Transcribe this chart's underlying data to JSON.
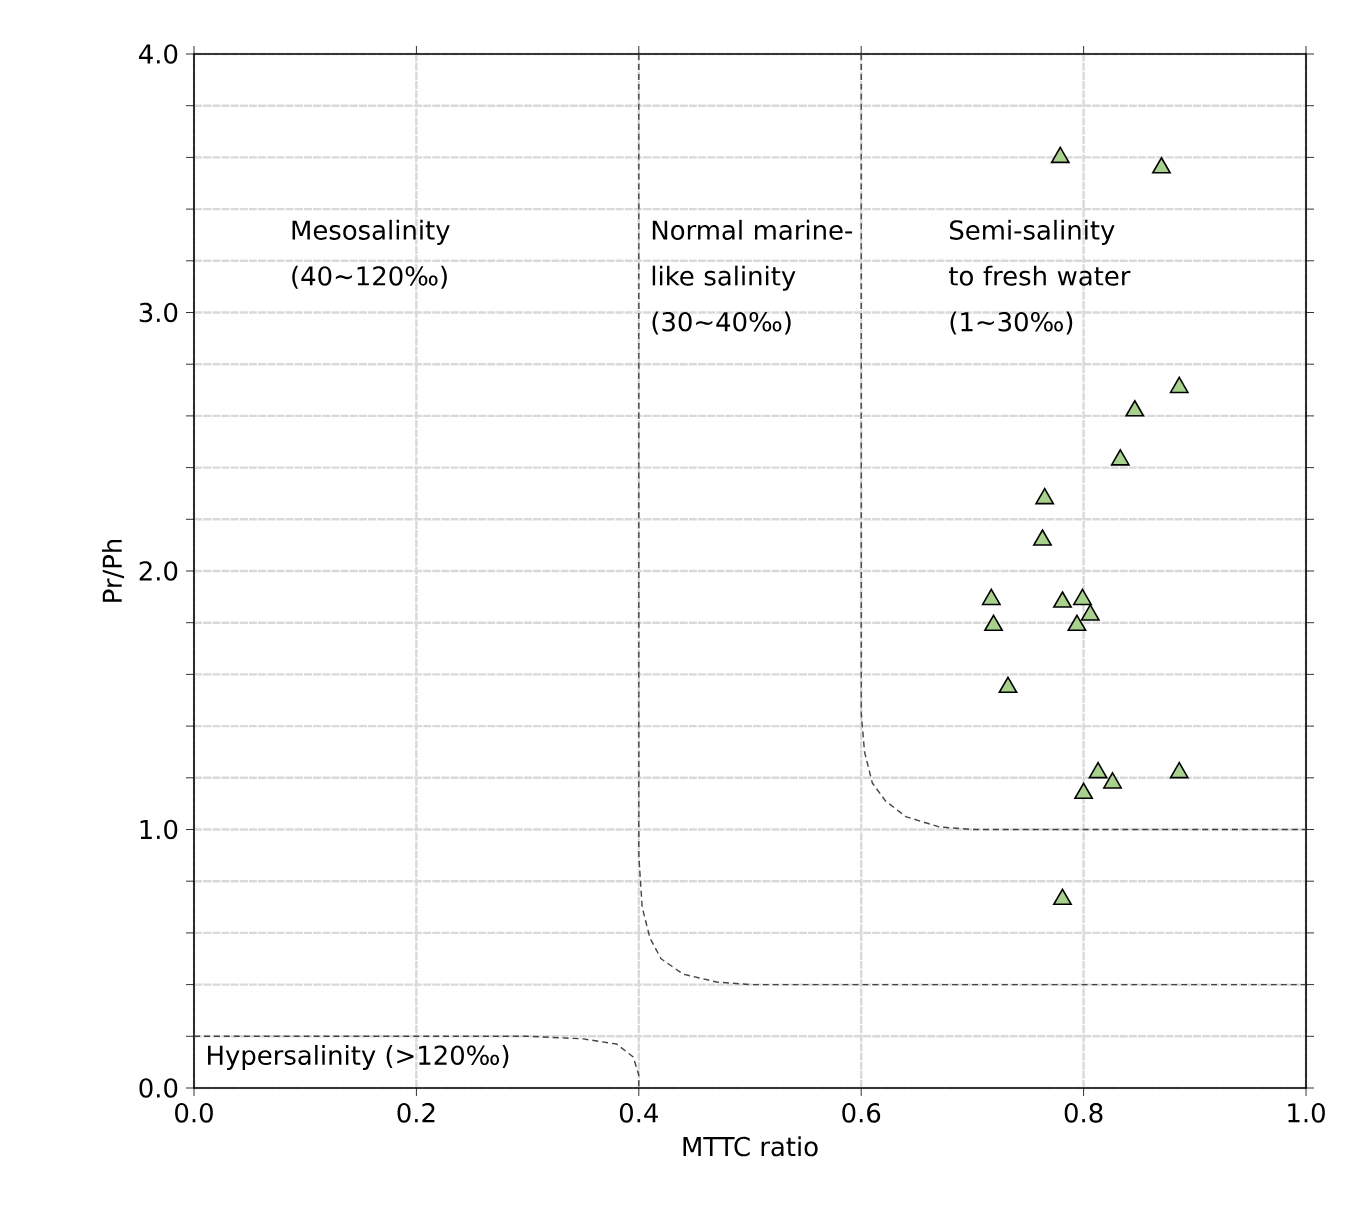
{
  "chart_data": {
    "type": "scatter",
    "xlabel": "MTTC ratio",
    "ylabel": "Pr/Ph",
    "xlim": [
      0,
      1
    ],
    "ylim": [
      0,
      4
    ],
    "xticks": [
      {
        "value": 0,
        "label": "0.0"
      },
      {
        "value": 0.2,
        "label": "0.2"
      },
      {
        "value": 0.4,
        "label": "0.4"
      },
      {
        "value": 0.6,
        "label": "0.6"
      },
      {
        "value": 0.8,
        "label": "0.8"
      },
      {
        "value": 1,
        "label": "1.0"
      }
    ],
    "yticks": [
      {
        "value": 0,
        "label": "0.0"
      },
      {
        "value": 0.2,
        "label": null
      },
      {
        "value": 0.4,
        "label": null
      },
      {
        "value": 0.6,
        "label": null
      },
      {
        "value": 0.8,
        "label": null
      },
      {
        "value": 1,
        "label": "1.0"
      },
      {
        "value": 1.2,
        "label": null
      },
      {
        "value": 1.4,
        "label": null
      },
      {
        "value": 1.6,
        "label": null
      },
      {
        "value": 1.8,
        "label": null
      },
      {
        "value": 2,
        "label": "2.0"
      },
      {
        "value": 2.2,
        "label": null
      },
      {
        "value": 2.4,
        "label": null
      },
      {
        "value": 2.6,
        "label": null
      },
      {
        "value": 2.8,
        "label": null
      },
      {
        "value": 3,
        "label": "3.0"
      },
      {
        "value": 3.2,
        "label": null
      },
      {
        "value": 3.4,
        "label": null
      },
      {
        "value": 3.6,
        "label": null
      },
      {
        "value": 3.8,
        "label": null
      },
      {
        "value": 4,
        "label": "4.0"
      }
    ],
    "grid": true,
    "series": [
      {
        "marker": "triangle",
        "color": "#a9d18e",
        "x": [
          0.779,
          0.87,
          0.886,
          0.846,
          0.833,
          0.765,
          0.763,
          0.717,
          0.719,
          0.781,
          0.799,
          0.806,
          0.794,
          0.732,
          0.813,
          0.826,
          0.8,
          0.886,
          0.781
        ],
        "values": [
          3.6,
          3.56,
          2.71,
          2.62,
          2.43,
          2.28,
          2.12,
          1.89,
          1.79,
          1.88,
          1.89,
          1.83,
          1.79,
          1.55,
          1.22,
          1.18,
          1.14,
          1.22,
          0.73
        ]
      },
      {
        "type": "line",
        "line_style": "dashed",
        "color": "#444444",
        "x": [
          0.6,
          0.6,
          0.603,
          0.61,
          0.622,
          0.64,
          0.67,
          0.7,
          1
        ],
        "values": [
          4,
          1.45,
          1.3,
          1.18,
          1.11,
          1.05,
          1.01,
          1,
          1
        ]
      },
      {
        "type": "line",
        "line_style": "dashed",
        "color": "#444444",
        "x": [
          0.4,
          0.4,
          0.403,
          0.41,
          0.42,
          0.44,
          0.47,
          0.5,
          1
        ],
        "values": [
          4,
          0.9,
          0.7,
          0.58,
          0.5,
          0.44,
          0.41,
          0.4,
          0.4
        ]
      },
      {
        "type": "line",
        "line_style": "dashed",
        "color": "#444444",
        "x": [
          0,
          0.3,
          0.35,
          0.38,
          0.395,
          0.4,
          0.4
        ],
        "values": [
          0.2,
          0.2,
          0.19,
          0.17,
          0.12,
          0.05,
          0
        ]
      }
    ],
    "annotations": [
      "Mesosalinity (40~120‰)",
      "Normal marine-like salinity (30~40‰)",
      "Semi-salinity to fresh water (1~30‰)",
      "Hypersalinity (>120‰)"
    ]
  }
}
